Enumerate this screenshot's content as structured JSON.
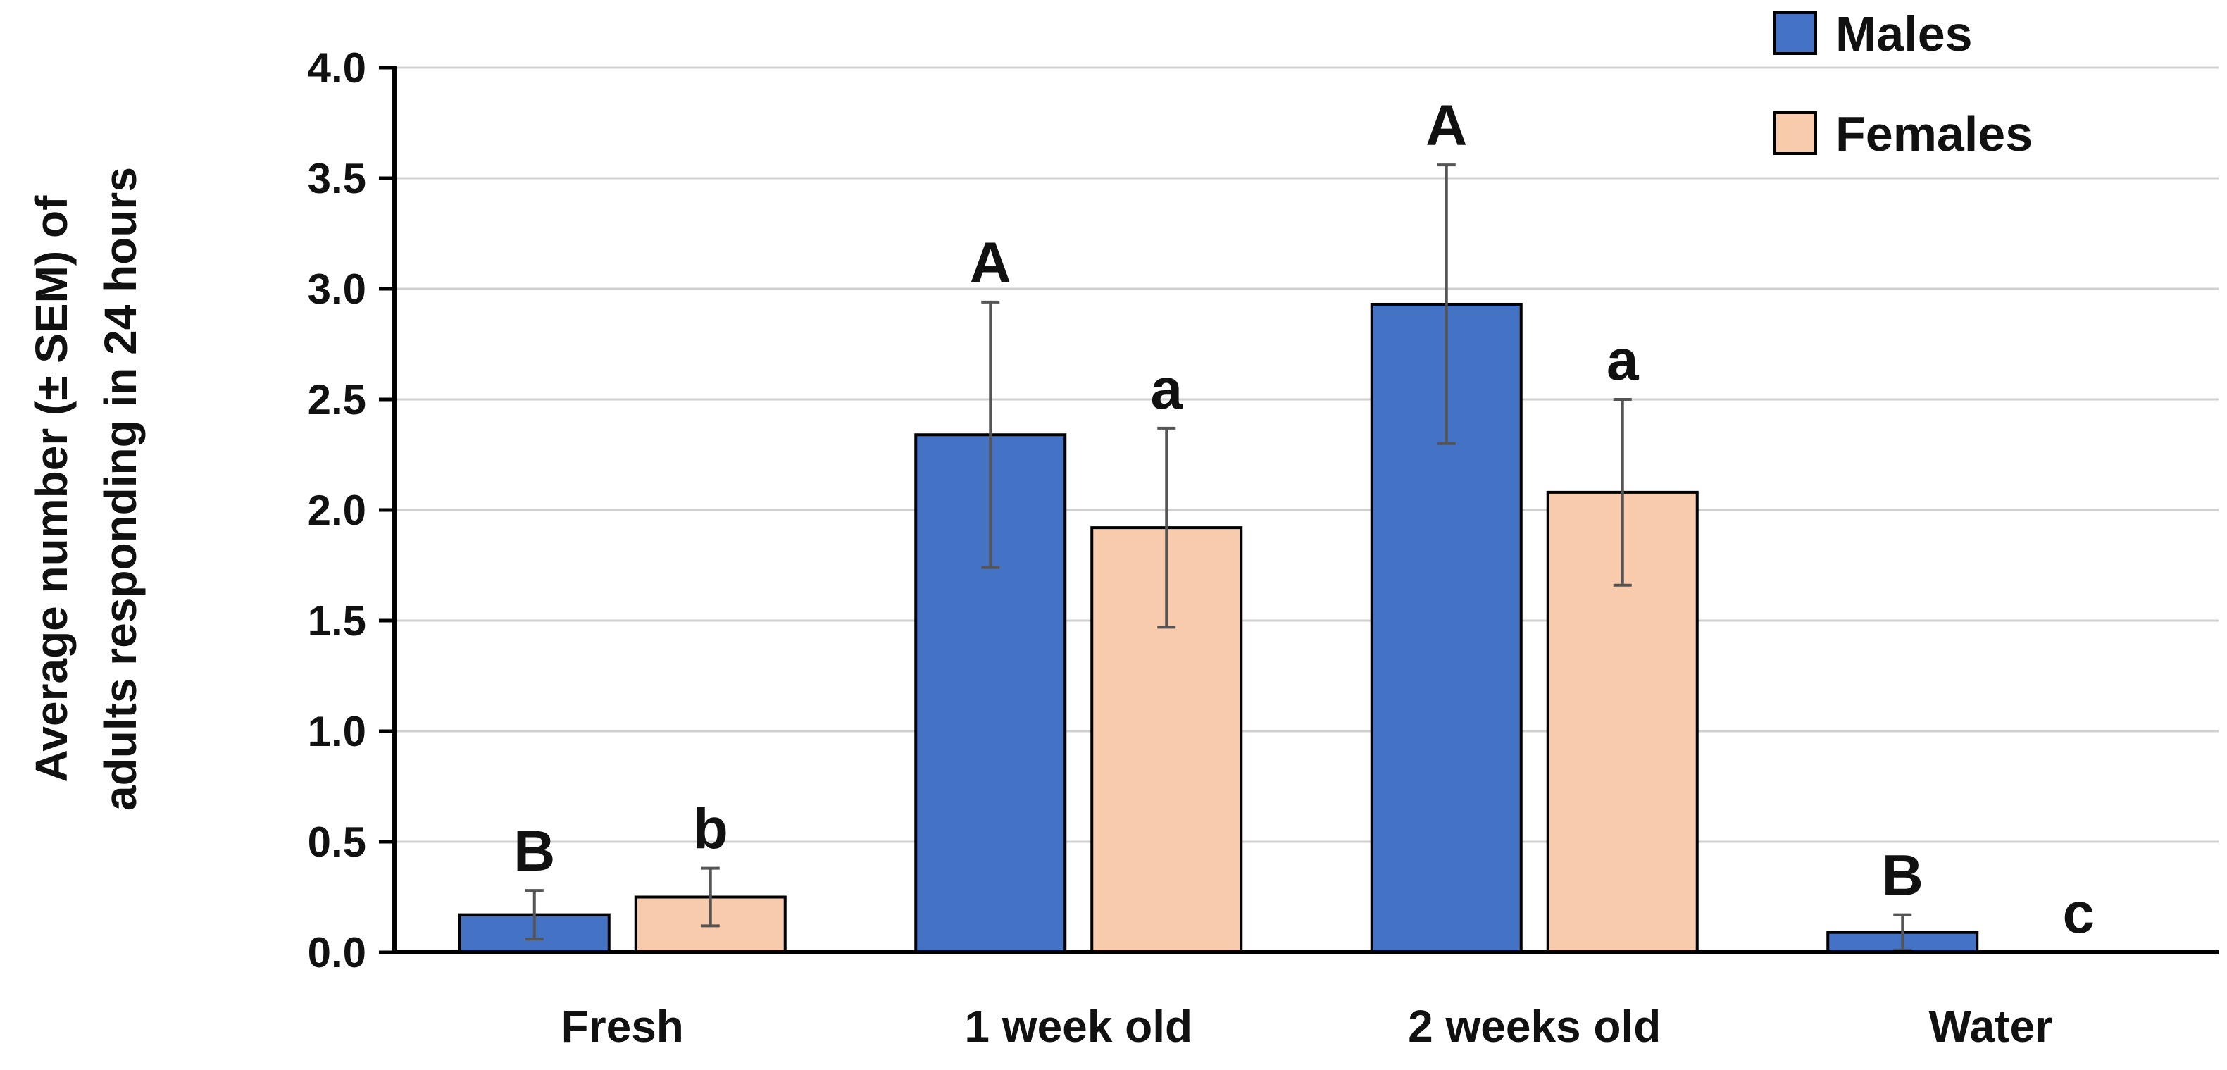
{
  "chart_data": {
    "type": "bar",
    "title": "",
    "xlabel": "",
    "ylabel": [
      "Average number (± SEM) of",
      "adults responding in 24 hours"
    ],
    "ylim": [
      0,
      4.0
    ],
    "yticks": [
      "0.0",
      "0.5",
      "1.0",
      "1.5",
      "2.0",
      "2.5",
      "3.0",
      "3.5",
      "4.0"
    ],
    "grid": true,
    "legend_position": "top-right",
    "categories": [
      "Fresh",
      "1 week old",
      "2 weeks old",
      "Water"
    ],
    "series": [
      {
        "name": "Males",
        "color": "#4472c4",
        "values": [
          0.17,
          2.34,
          2.93,
          0.09
        ],
        "errors": [
          0.11,
          0.6,
          0.63,
          0.08
        ],
        "letters": [
          "B",
          "A",
          "A",
          "B"
        ]
      },
      {
        "name": "Females",
        "color": "#f8cbad",
        "values": [
          0.25,
          1.92,
          2.08,
          0.0
        ],
        "errors": [
          0.13,
          0.45,
          0.42,
          0.0
        ],
        "letters": [
          "b",
          "a",
          "a",
          "c"
        ]
      }
    ]
  }
}
